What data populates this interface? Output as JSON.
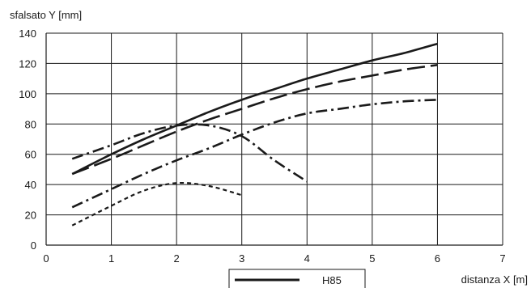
{
  "chart_data": {
    "type": "line",
    "ylabel": "sfalsato Y [mm]",
    "xlabel": "distanza X [m]",
    "xlim": [
      0,
      7
    ],
    "ylim": [
      0,
      140
    ],
    "xticks": [
      0,
      1,
      2,
      3,
      4,
      5,
      6,
      7
    ],
    "yticks": [
      0,
      20,
      40,
      60,
      80,
      100,
      120,
      140
    ],
    "grid": true,
    "legend_position": "bottom",
    "series": [
      {
        "name": "H85",
        "dash": "solid",
        "x": [
          0.4,
          1,
          1.5,
          2,
          2.5,
          3,
          3.5,
          4,
          4.5,
          5,
          5.5,
          6
        ],
        "y": [
          47,
          60,
          70,
          79,
          88,
          96,
          103,
          110,
          116,
          122,
          127,
          133
        ]
      },
      {
        "name": "",
        "dash": "long-dash",
        "x": [
          0.4,
          1,
          1.5,
          2,
          2.5,
          3,
          3.5,
          4,
          4.5,
          5,
          5.5,
          6
        ],
        "y": [
          47,
          57,
          66,
          75,
          83,
          90,
          97,
          103,
          108,
          112,
          116,
          119
        ]
      },
      {
        "name": "",
        "dash": "dash-dot",
        "x": [
          0.4,
          1,
          1.5,
          2,
          2.5,
          3,
          3.5,
          4,
          4.5,
          5,
          5.5,
          6
        ],
        "y": [
          25,
          37,
          47,
          56,
          64,
          73,
          81,
          87,
          90,
          93,
          95,
          96
        ]
      },
      {
        "name": "",
        "dash": "dash-dot",
        "x": [
          0.4,
          1,
          1.5,
          2,
          2.5,
          3,
          3.5,
          4
        ],
        "y": [
          57,
          66,
          74,
          79,
          79,
          72,
          56,
          42
        ]
      },
      {
        "name": "",
        "dash": "short-dash",
        "x": [
          0.4,
          1,
          1.5,
          2,
          2.5,
          3
        ],
        "y": [
          13,
          26,
          36,
          41,
          39,
          33
        ]
      }
    ]
  }
}
